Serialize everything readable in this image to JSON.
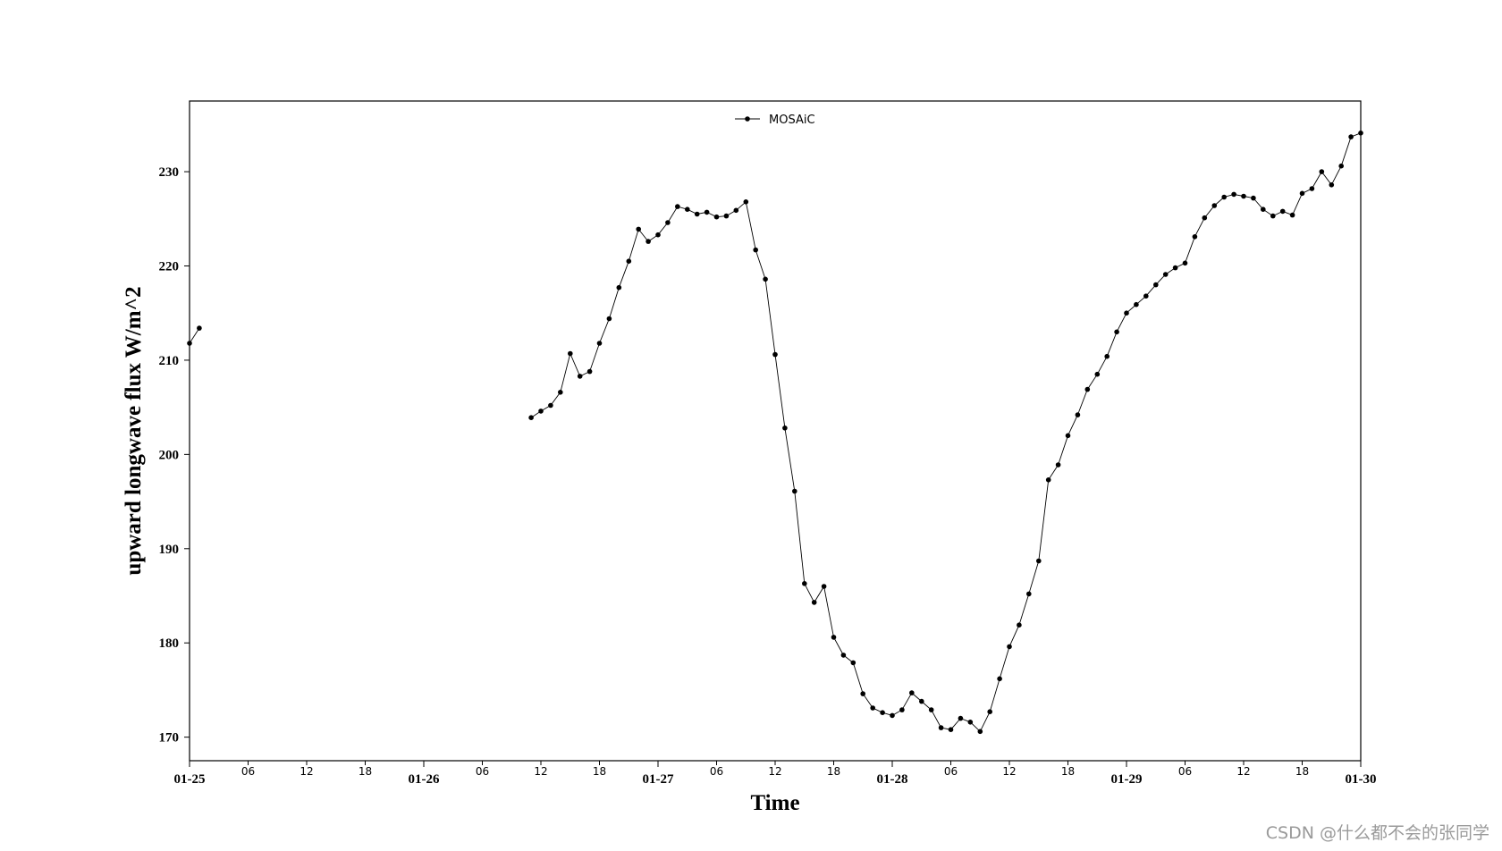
{
  "chart_data": {
    "type": "line",
    "xlabel": "Time",
    "ylabel": "upward longwave flux W/m^2",
    "xlim": [
      "2020-01-25 00:00",
      "2020-01-30 00:00"
    ],
    "ylim": [
      167.5,
      237.5
    ],
    "yticks": [
      170,
      180,
      190,
      200,
      210,
      220,
      230
    ],
    "xticks_major": [
      {
        "t": "2020-01-25 00:00",
        "label": "01-25"
      },
      {
        "t": "2020-01-26 00:00",
        "label": "01-26"
      },
      {
        "t": "2020-01-27 00:00",
        "label": "01-27"
      },
      {
        "t": "2020-01-28 00:00",
        "label": "01-28"
      },
      {
        "t": "2020-01-29 00:00",
        "label": "01-29"
      },
      {
        "t": "2020-01-30 00:00",
        "label": "01-30"
      }
    ],
    "xticks_minor": [
      {
        "t": "2020-01-25 06:00",
        "label": "06"
      },
      {
        "t": "2020-01-25 12:00",
        "label": "12"
      },
      {
        "t": "2020-01-25 18:00",
        "label": "18"
      },
      {
        "t": "2020-01-26 06:00",
        "label": "06"
      },
      {
        "t": "2020-01-26 12:00",
        "label": "12"
      },
      {
        "t": "2020-01-26 18:00",
        "label": "18"
      },
      {
        "t": "2020-01-27 06:00",
        "label": "06"
      },
      {
        "t": "2020-01-27 12:00",
        "label": "12"
      },
      {
        "t": "2020-01-27 18:00",
        "label": "18"
      },
      {
        "t": "2020-01-28 06:00",
        "label": "06"
      },
      {
        "t": "2020-01-28 12:00",
        "label": "12"
      },
      {
        "t": "2020-01-28 18:00",
        "label": "18"
      },
      {
        "t": "2020-01-29 06:00",
        "label": "06"
      },
      {
        "t": "2020-01-29 12:00",
        "label": "12"
      },
      {
        "t": "2020-01-29 18:00",
        "label": "18"
      }
    ],
    "legend_position": "top-center",
    "grid": false,
    "series": [
      {
        "name": "MOSAiC",
        "color": "#000000",
        "segments": [
          {
            "x": [
              "2020-01-25 00:00",
              "2020-01-25 01:00"
            ],
            "y": [
              211.8,
              213.4
            ]
          },
          {
            "x": [
              "2020-01-26 11:00",
              "2020-01-26 12:00",
              "2020-01-26 13:00",
              "2020-01-26 14:00",
              "2020-01-26 15:00",
              "2020-01-26 16:00",
              "2020-01-26 17:00",
              "2020-01-26 18:00",
              "2020-01-26 19:00",
              "2020-01-26 20:00",
              "2020-01-26 21:00",
              "2020-01-26 22:00",
              "2020-01-26 23:00",
              "2020-01-27 00:00",
              "2020-01-27 01:00",
              "2020-01-27 02:00",
              "2020-01-27 03:00",
              "2020-01-27 04:00",
              "2020-01-27 05:00",
              "2020-01-27 06:00",
              "2020-01-27 07:00",
              "2020-01-27 08:00",
              "2020-01-27 09:00",
              "2020-01-27 10:00",
              "2020-01-27 11:00",
              "2020-01-27 12:00",
              "2020-01-27 13:00",
              "2020-01-27 14:00",
              "2020-01-27 15:00",
              "2020-01-27 16:00",
              "2020-01-27 17:00",
              "2020-01-27 18:00",
              "2020-01-27 19:00",
              "2020-01-27 20:00",
              "2020-01-27 21:00",
              "2020-01-27 22:00",
              "2020-01-27 23:00",
              "2020-01-28 00:00",
              "2020-01-28 01:00",
              "2020-01-28 02:00",
              "2020-01-28 03:00",
              "2020-01-28 04:00",
              "2020-01-28 05:00",
              "2020-01-28 06:00",
              "2020-01-28 07:00",
              "2020-01-28 08:00",
              "2020-01-28 09:00",
              "2020-01-28 10:00",
              "2020-01-28 11:00",
              "2020-01-28 12:00",
              "2020-01-28 13:00",
              "2020-01-28 14:00",
              "2020-01-28 15:00",
              "2020-01-28 16:00",
              "2020-01-28 17:00",
              "2020-01-28 18:00",
              "2020-01-28 19:00",
              "2020-01-28 20:00",
              "2020-01-28 21:00",
              "2020-01-28 22:00",
              "2020-01-28 23:00",
              "2020-01-29 00:00",
              "2020-01-29 01:00",
              "2020-01-29 02:00",
              "2020-01-29 03:00",
              "2020-01-29 04:00",
              "2020-01-29 05:00",
              "2020-01-29 06:00",
              "2020-01-29 07:00",
              "2020-01-29 08:00",
              "2020-01-29 09:00",
              "2020-01-29 10:00",
              "2020-01-29 11:00",
              "2020-01-29 12:00",
              "2020-01-29 13:00",
              "2020-01-29 14:00",
              "2020-01-29 15:00",
              "2020-01-29 16:00",
              "2020-01-29 17:00",
              "2020-01-29 18:00",
              "2020-01-29 19:00",
              "2020-01-29 20:00",
              "2020-01-29 21:00",
              "2020-01-29 22:00",
              "2020-01-29 23:00",
              "2020-01-30 00:00"
            ],
            "y": [
              203.9,
              204.6,
              205.2,
              206.6,
              210.7,
              208.3,
              208.8,
              211.8,
              214.4,
              217.7,
              220.5,
              223.9,
              222.6,
              223.3,
              224.6,
              226.3,
              226.0,
              225.5,
              225.7,
              225.2,
              225.3,
              225.9,
              226.8,
              221.7,
              218.6,
              210.6,
              202.8,
              196.1,
              186.3,
              184.3,
              186.0,
              180.6,
              178.7,
              177.9,
              174.6,
              173.1,
              172.6,
              172.3,
              172.9,
              174.7,
              173.8,
              172.9,
              171.0,
              170.8,
              172.0,
              171.6,
              170.6,
              172.7,
              176.2,
              179.6,
              181.9,
              185.2,
              188.7,
              197.3,
              198.9,
              202.0,
              204.2,
              206.9,
              208.5,
              210.4,
              213.0,
              215.0,
              215.9,
              216.8,
              218.0,
              219.1,
              219.8,
              220.3,
              223.1,
              225.1,
              226.4,
              227.3,
              227.6,
              227.4,
              227.2,
              226.0,
              225.3,
              225.8,
              225.4,
              227.7,
              228.2,
              230.0,
              228.6,
              230.6,
              233.7,
              234.1
            ]
          }
        ]
      }
    ]
  },
  "legend": {
    "label": "MOSAiC"
  },
  "watermark": {
    "text": "CSDN @什么都不会的张同学"
  }
}
